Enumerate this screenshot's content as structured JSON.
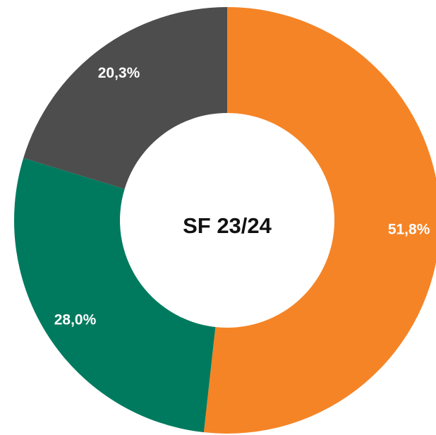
{
  "chart_data": {
    "type": "donut",
    "center_text": "SF 23/24",
    "values": [
      51.8,
      28.0,
      20.3
    ],
    "value_labels": [
      "51,8%",
      "28,0%",
      "20,3%"
    ],
    "colors": [
      "#f58426",
      "#007a5e",
      "#4d4d4d"
    ]
  }
}
